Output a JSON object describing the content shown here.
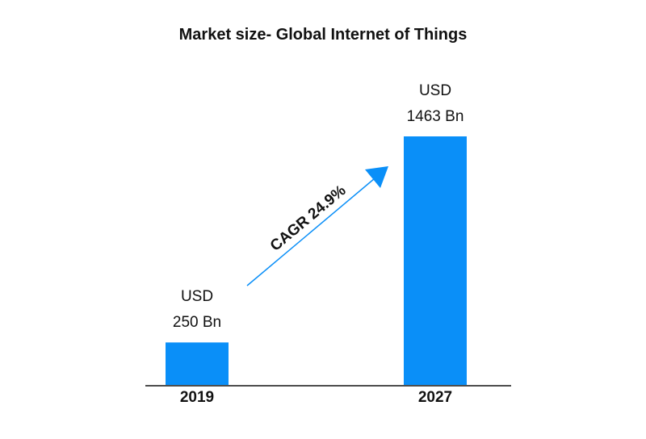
{
  "chart_data": {
    "type": "bar",
    "title": "Market size- Global Internet of Things",
    "categories": [
      "2019",
      "2027"
    ],
    "values": [
      250,
      1463
    ],
    "value_labels": [
      "USD\n250 Bn",
      "USD\n1463 Bn"
    ],
    "color": "#0a8ff8",
    "annotation": "CAGR 24.9%"
  }
}
